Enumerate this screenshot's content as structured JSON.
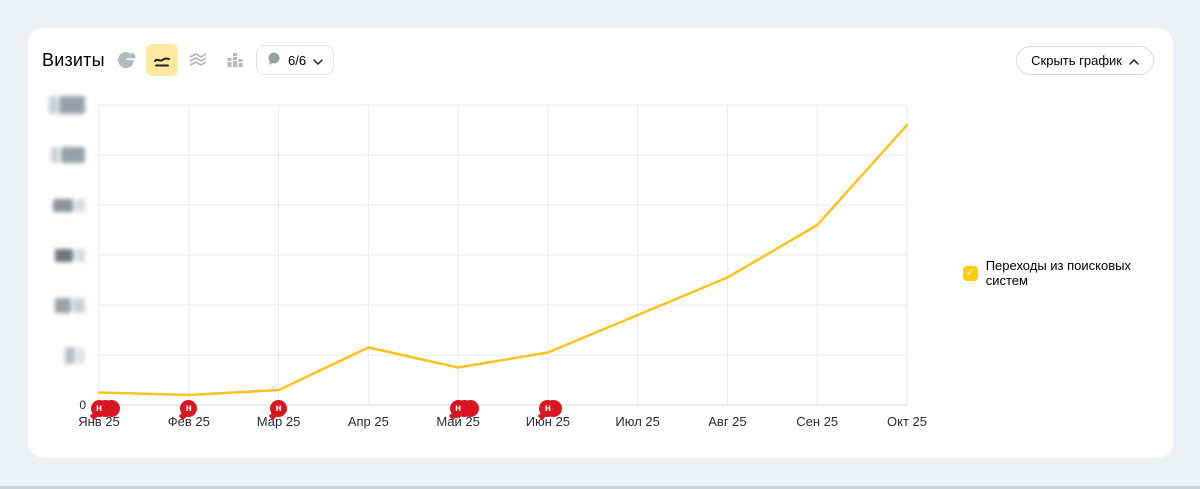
{
  "panel": {
    "title": "Визиты",
    "hide_button": {
      "label": "Скрыть график",
      "icon": "chevron-up-icon"
    },
    "chart_type_switcher": [
      {
        "name": "pie-chart",
        "selected": false
      },
      {
        "name": "line-chart",
        "selected": true
      },
      {
        "name": "stacked-area-chart",
        "selected": false
      },
      {
        "name": "bar-chart",
        "selected": false
      }
    ],
    "annotations_dropdown": {
      "label": "6/6",
      "icon": "speech-bubble-icon"
    }
  },
  "legend": {
    "position": "right",
    "items": [
      {
        "label": "Переходы из поисковых систем",
        "color": "#ffcc00",
        "checked": true
      }
    ]
  },
  "chart_data": {
    "type": "line",
    "title": "Визиты",
    "categories": [
      "Янв 25",
      "Фев 25",
      "Мар 25",
      "Апр 25",
      "Май 25",
      "Июн 25",
      "Июл 25",
      "Авг 25",
      "Сен 25",
      "Окт 25"
    ],
    "series": [
      {
        "name": "Переходы из поисковых систем",
        "color": "#fdc220",
        "values": [
          0.25,
          0.2,
          0.3,
          1.15,
          0.75,
          1.05,
          1.8,
          2.55,
          3.6,
          5.6
        ]
      }
    ],
    "values_note": "values in gridline units; numeric y tick labels are blurred out in the source image",
    "y_axis": {
      "min": 0,
      "max": 6,
      "gridline_step": 1,
      "zero_label": "0",
      "tick_labels_blurred": true,
      "blurred_tick_count": 6
    },
    "grid": true,
    "legend_position": "right",
    "annotations": [
      {
        "category": "Янв 25",
        "index": 0,
        "badge": "н",
        "count": 3
      },
      {
        "category": "Фев 25",
        "index": 1,
        "badge": "н",
        "count": 1
      },
      {
        "category": "Мар 25",
        "index": 2,
        "badge": "н",
        "count": 1
      },
      {
        "category": "Май 25",
        "index": 4,
        "badge": "н",
        "count": 3
      },
      {
        "category": "Июн 25",
        "index": 5,
        "badge": "н",
        "count": 2
      }
    ]
  }
}
